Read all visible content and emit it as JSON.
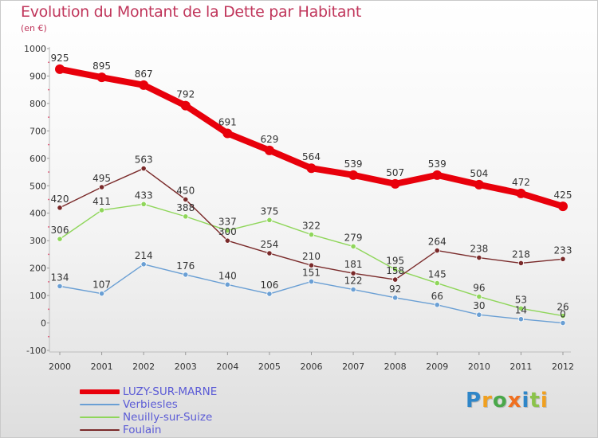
{
  "title": "Evolution du Montant de la Dette par Habitant",
  "subtitle": "(en €)",
  "brand": {
    "letters": [
      "P",
      "r",
      "o",
      "x",
      "i",
      "t",
      "i"
    ],
    "colors": [
      "#2f86c8",
      "#f0a020",
      "#4aa84a",
      "#f07020",
      "#2f86c8",
      "#8bc34a",
      "#f0a020"
    ]
  },
  "chart_data": {
    "type": "line",
    "x": [
      "2000",
      "2001",
      "2002",
      "2003",
      "2004",
      "2005",
      "2006",
      "2007",
      "2008",
      "2009",
      "2010",
      "2011",
      "2012"
    ],
    "y_ticks": [
      "-100",
      "0",
      "100",
      "200",
      "300",
      "400",
      "500",
      "600",
      "700",
      "800",
      "900",
      "1000"
    ],
    "ylim": [
      -100,
      1000
    ],
    "grid": false,
    "legend_position": "bottom-left",
    "series": [
      {
        "name": "LUZY-SUR-MARNE",
        "color": "#e8000b",
        "values": [
          925,
          895,
          867,
          792,
          691,
          629,
          564,
          539,
          507,
          539,
          504,
          472,
          425
        ],
        "labels": [
          "925",
          "895",
          "867",
          "792",
          "691",
          "629",
          "564",
          "539",
          "507",
          "539",
          "504",
          "472",
          "425"
        ]
      },
      {
        "name": "Verbiesles",
        "color": "#6a9fd4",
        "values": [
          134,
          107,
          214,
          176,
          140,
          106,
          151,
          122,
          92,
          66,
          30,
          14,
          0
        ],
        "labels": [
          "134",
          "107",
          "214",
          "176",
          "140",
          "106",
          "151",
          "122",
          "92",
          "66",
          "30",
          "14",
          "0"
        ]
      },
      {
        "name": "Neuilly-sur-Suize",
        "color": "#8fd65a",
        "values": [
          306,
          411,
          433,
          388,
          337,
          375,
          322,
          279,
          195,
          145,
          96,
          53,
          26
        ],
        "labels": [
          "306",
          "411",
          "433",
          "388",
          "337",
          "375",
          "322",
          "279",
          "195",
          "145",
          "96",
          "53",
          "26"
        ]
      },
      {
        "name": "Foulain",
        "color": "#7a2a2a",
        "values": [
          420,
          495,
          563,
          450,
          300,
          254,
          210,
          181,
          158,
          264,
          238,
          218,
          233
        ],
        "labels": [
          "420",
          "495",
          "563",
          "450",
          "300",
          "254",
          "210",
          "181",
          "158",
          "264",
          "238",
          "218",
          "233"
        ]
      }
    ]
  }
}
